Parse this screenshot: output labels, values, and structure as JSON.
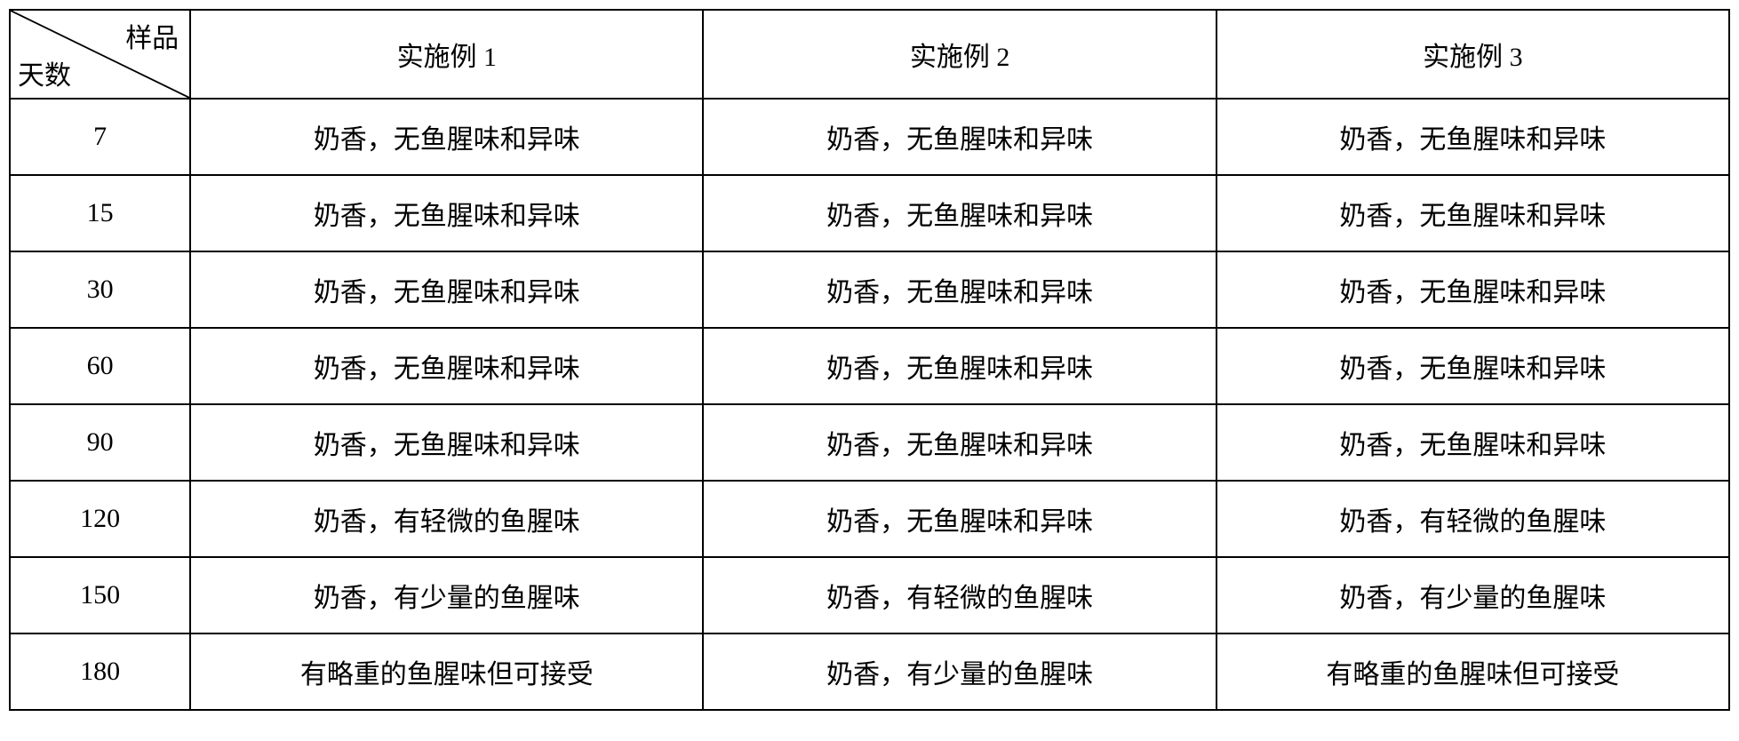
{
  "table": {
    "header": {
      "corner_top": "样品",
      "corner_bottom": "天数",
      "col1": "实施例 1",
      "col2": "实施例 2",
      "col3": "实施例 3"
    },
    "rows": [
      {
        "days": "7",
        "c1": "奶香，无鱼腥味和异味",
        "c2": "奶香，无鱼腥味和异味",
        "c3": "奶香，无鱼腥味和异味"
      },
      {
        "days": "15",
        "c1": "奶香，无鱼腥味和异味",
        "c2": "奶香，无鱼腥味和异味",
        "c3": "奶香，无鱼腥味和异味"
      },
      {
        "days": "30",
        "c1": "奶香，无鱼腥味和异味",
        "c2": "奶香，无鱼腥味和异味",
        "c3": "奶香，无鱼腥味和异味"
      },
      {
        "days": "60",
        "c1": "奶香，无鱼腥味和异味",
        "c2": "奶香，无鱼腥味和异味",
        "c3": "奶香，无鱼腥味和异味"
      },
      {
        "days": "90",
        "c1": "奶香，无鱼腥味和异味",
        "c2": "奶香，无鱼腥味和异味",
        "c3": "奶香，无鱼腥味和异味"
      },
      {
        "days": "120",
        "c1": "奶香，有轻微的鱼腥味",
        "c2": "奶香，无鱼腥味和异味",
        "c3": "奶香，有轻微的鱼腥味"
      },
      {
        "days": "150",
        "c1": "奶香，有少量的鱼腥味",
        "c2": "奶香，有轻微的鱼腥味",
        "c3": "奶香，有少量的鱼腥味"
      },
      {
        "days": "180",
        "c1": "有略重的鱼腥味但可接受",
        "c2": "奶香，有少量的鱼腥味",
        "c3": "有略重的鱼腥味但可接受"
      }
    ]
  },
  "style": {
    "font_size": 30,
    "border_color": "#000000",
    "background_color": "#ffffff",
    "text_color": "#000000"
  }
}
